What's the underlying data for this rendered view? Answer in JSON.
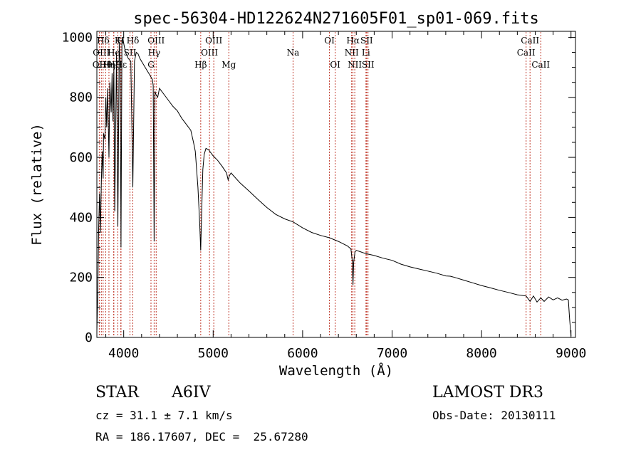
{
  "chart_data": {
    "type": "line",
    "title": "spec-56304-HD122624N271605F01_sp01-069.fits",
    "xlabel": "Wavelength (Å)",
    "ylabel": "Flux (relative)",
    "xlim": [
      3700,
      9050
    ],
    "ylim": [
      0,
      1020
    ],
    "xticks": [
      4000,
      5000,
      6000,
      7000,
      8000,
      9000
    ],
    "yticks": [
      0,
      200,
      400,
      600,
      800,
      1000
    ],
    "grid": false,
    "series": [
      {
        "name": "flux",
        "x": [
          3700,
          3710,
          3720,
          3730,
          3740,
          3750,
          3760,
          3770,
          3775,
          3790,
          3800,
          3810,
          3820,
          3835,
          3845,
          3860,
          3870,
          3880,
          3890,
          3900,
          3920,
          3935,
          3950,
          3960,
          3970,
          3980,
          3990,
          4000,
          4020,
          4050,
          4080,
          4102,
          4120,
          4140,
          4160,
          4180,
          4200,
          4220,
          4240,
          4260,
          4280,
          4300,
          4320,
          4330,
          4340,
          4350,
          4360,
          4380,
          4400,
          4450,
          4500,
          4550,
          4600,
          4650,
          4700,
          4750,
          4780,
          4800,
          4830,
          4850,
          4861,
          4872,
          4885,
          4900,
          4920,
          4950,
          5000,
          5050,
          5100,
          5150,
          5167,
          5183,
          5200,
          5300,
          5400,
          5500,
          5600,
          5700,
          5800,
          5893,
          6000,
          6100,
          6200,
          6300,
          6400,
          6500,
          6540,
          6555,
          6563,
          6571,
          6585,
          6600,
          6700,
          6800,
          6900,
          7000,
          7100,
          7200,
          7300,
          7400,
          7500,
          7600,
          7650,
          7700,
          7800,
          7900,
          8000,
          8100,
          8200,
          8300,
          8400,
          8498,
          8542,
          8580,
          8620,
          8662,
          8700,
          8750,
          8800,
          8850,
          8900,
          8950,
          8970,
          8985,
          9000
        ],
        "values": [
          20,
          150,
          360,
          480,
          350,
          520,
          620,
          530,
          680,
          660,
          800,
          700,
          830,
          600,
          850,
          750,
          880,
          720,
          900,
          420,
          950,
          370,
          980,
          920,
          300,
          990,
          1000,
          980,
          950,
          930,
          920,
          500,
          920,
          950,
          945,
          930,
          920,
          910,
          900,
          890,
          880,
          870,
          860,
          840,
          320,
          820,
          810,
          800,
          830,
          810,
          790,
          770,
          755,
          730,
          710,
          690,
          650,
          620,
          500,
          380,
          290,
          420,
          560,
          610,
          630,
          625,
          605,
          590,
          570,
          548,
          525,
          540,
          548,
          515,
          488,
          460,
          433,
          410,
          395,
          385,
          365,
          350,
          340,
          332,
          320,
          305,
          295,
          255,
          175,
          250,
          285,
          290,
          280,
          273,
          264,
          257,
          244,
          235,
          228,
          221,
          214,
          205,
          204,
          200,
          191,
          182,
          173,
          165,
          157,
          150,
          142,
          138,
          120,
          138,
          118,
          132,
          120,
          135,
          125,
          132,
          124,
          128,
          125,
          60,
          5
        ]
      }
    ],
    "lines": [
      {
        "name": "OII",
        "wave": 3727,
        "label_row": 3
      },
      {
        "name": "Hθ",
        "wave": 3798,
        "label_row": 3
      },
      {
        "name": "Hη",
        "wave": 3835,
        "label_row": 3
      },
      {
        "name": "Hζ",
        "wave": 3889,
        "label_row": 3
      },
      {
        "name": "Hε",
        "wave": 3970,
        "label_row": 3
      },
      {
        "name": "Hδ",
        "wave": 4102,
        "label_row": 1
      },
      {
        "name": "K",
        "wave": 3934,
        "label_row": 1
      },
      {
        "name": "H",
        "wave": 3968,
        "label_row": 1
      },
      {
        "name": "Hδ",
        "wave": 3770,
        "label_row": 1
      },
      {
        "name": "OIII",
        "wave": 3750,
        "label_row": 2
      },
      {
        "name": "He",
        "wave": 3889,
        "label_row": 2
      },
      {
        "name": "SII",
        "wave": 4070,
        "label_row": 2
      },
      {
        "name": "OIII",
        "wave": 4363,
        "label_row": 1
      },
      {
        "name": "Hγ",
        "wave": 4340,
        "label_row": 2
      },
      {
        "name": "G",
        "wave": 4305,
        "label_row": 3
      },
      {
        "name": "Hβ",
        "wave": 4861,
        "label_row": 3
      },
      {
        "name": "OIII",
        "wave": 4959,
        "label_row": 2
      },
      {
        "name": "OIII",
        "wave": 5007,
        "label_row": 1
      },
      {
        "name": "Mg",
        "wave": 5175,
        "label_row": 3
      },
      {
        "name": "Na",
        "wave": 5893,
        "label_row": 2
      },
      {
        "name": "OI",
        "wave": 6300,
        "label_row": 1
      },
      {
        "name": "OI",
        "wave": 6364,
        "label_row": 3
      },
      {
        "name": "NII",
        "wave": 6548,
        "label_row": 2
      },
      {
        "name": "Hα",
        "wave": 6563,
        "label_row": 1
      },
      {
        "name": "NII",
        "wave": 6583,
        "label_row": 3
      },
      {
        "name": "Li",
        "wave": 6708,
        "label_row": 2
      },
      {
        "name": "SII",
        "wave": 6716,
        "label_row": 1
      },
      {
        "name": "SII",
        "wave": 6731,
        "label_row": 3
      },
      {
        "name": "CaII",
        "wave": 8498,
        "label_row": 2
      },
      {
        "name": "CaII",
        "wave": 8542,
        "label_row": 1
      },
      {
        "name": "CaII",
        "wave": 8662,
        "label_row": 3
      }
    ],
    "colors": {
      "line": "#000000",
      "marker_line": "#c0392b"
    }
  },
  "info": {
    "object_class": "STAR",
    "subclass": "A6IV",
    "survey": "LAMOST DR3",
    "cz": "cz = 31.1 ± 7.1 km/s",
    "obs_date": "Obs-Date: 20130111",
    "coords": "RA = 186.17607, DEC =  25.67280"
  }
}
